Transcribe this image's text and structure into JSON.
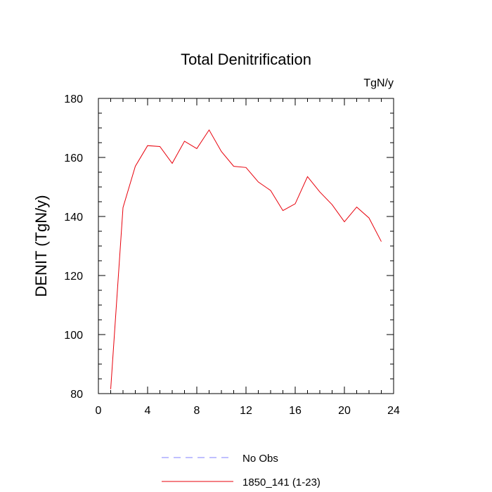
{
  "chart_data": {
    "type": "line",
    "title": "Total Denitrification",
    "units_label": "TgN/y",
    "xlabel": "",
    "ylabel": "DENIT  (TgN/y)",
    "xlim": [
      0,
      24
    ],
    "ylim": [
      80,
      180
    ],
    "x_ticks": [
      "0",
      "4",
      "8",
      "12",
      "16",
      "20",
      "24"
    ],
    "y_ticks": [
      "80",
      "100",
      "120",
      "140",
      "160",
      "180"
    ],
    "grid": false,
    "legend_position": "bottom",
    "series": [
      {
        "name": "No Obs",
        "style": "dashed",
        "color": "#8080ff",
        "x": [],
        "y": []
      },
      {
        "name": "1850_141 (1-23)",
        "style": "solid",
        "color": "#e8000b",
        "x": [
          1,
          2,
          3,
          4,
          5,
          6,
          7,
          8,
          9,
          10,
          11,
          12,
          13,
          14,
          15,
          16,
          17,
          18,
          19,
          20,
          21,
          22,
          23
        ],
        "y": [
          81.5,
          143,
          157,
          164,
          163.7,
          158,
          165.5,
          163,
          169.3,
          162,
          157,
          156.6,
          151.7,
          148.8,
          142,
          144.3,
          153.5,
          148.3,
          144,
          138.2,
          143.2,
          139.5,
          131.5
        ]
      }
    ]
  }
}
